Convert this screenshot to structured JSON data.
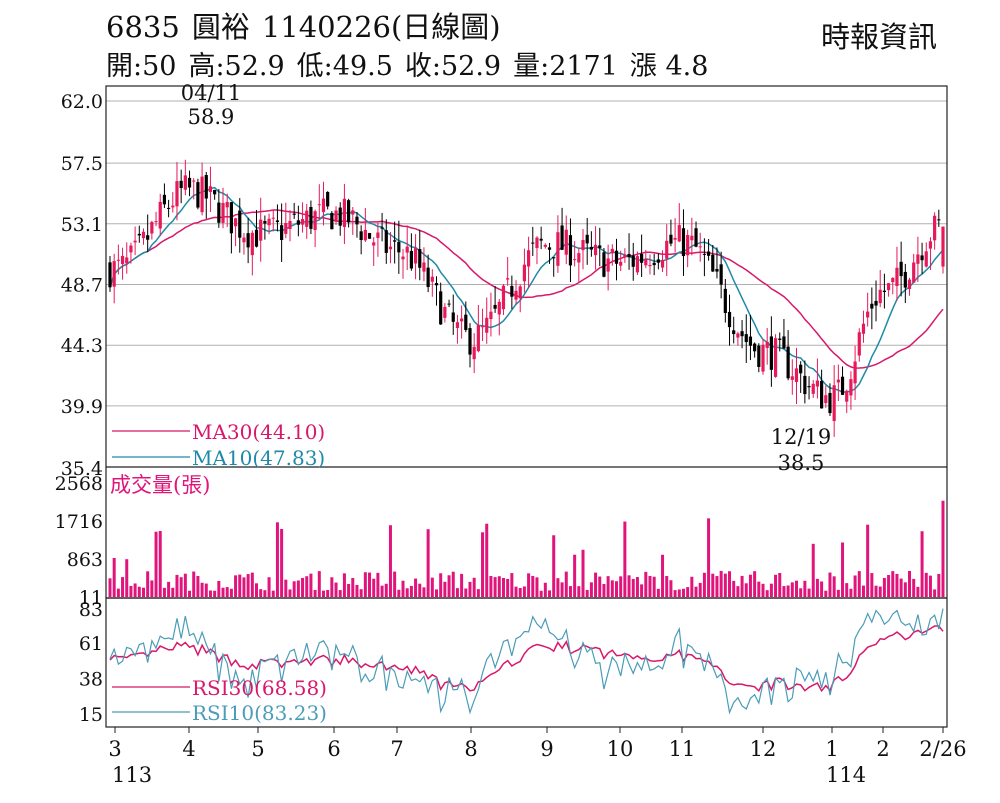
{
  "header": {
    "code": "6835",
    "name": "圓裕",
    "date_label": "1140226(日線圖)",
    "source": "時報資訊",
    "open": "開:50",
    "high": "高:52.9",
    "low": "低:49.5",
    "close": "收:52.9",
    "volume": "量:2171",
    "change": "漲 4.8"
  },
  "colors": {
    "up": "#e8195a",
    "down": "#000000",
    "ma30": "#d8186a",
    "ma10": "#1e8aa8",
    "volume": "#e0147a",
    "rsi30": "#d8186a",
    "rsi10": "#4a9cb8",
    "grid": "#b0b0b0"
  },
  "chart_data": [
    {
      "type": "candlestick",
      "panel": "price",
      "yticks": [
        "62.0",
        "57.5",
        "53.1",
        "48.7",
        "44.3",
        "39.9",
        "35.4"
      ],
      "ylim": [
        35.4,
        62.0
      ],
      "annotations": [
        {
          "date": "04/11",
          "value": "58.9",
          "kind": "high"
        },
        {
          "date": "12/19",
          "value": "38.5",
          "kind": "low"
        }
      ],
      "legend": [
        {
          "label": "MA30(44.10)",
          "color": "#d8186a"
        },
        {
          "label": "MA10(47.83)",
          "color": "#1e8aa8"
        }
      ],
      "monthly_close": [
        {
          "month": "3",
          "close": 49.8
        },
        {
          "month": "4",
          "close": 55.5
        },
        {
          "month": "5",
          "close": 52.4
        },
        {
          "month": "6",
          "close": 53.8
        },
        {
          "month": "7",
          "close": 51.2
        },
        {
          "month": "8",
          "close": 44.8
        },
        {
          "month": "9",
          "close": 51.6
        },
        {
          "month": "10",
          "close": 50.3
        },
        {
          "month": "11",
          "close": 51.8
        },
        {
          "month": "12",
          "close": 43.9
        },
        {
          "month": "1",
          "close": 40.5
        },
        {
          "month": "2",
          "close": 48.2
        },
        {
          "month": "2/26",
          "close": 52.9
        }
      ]
    },
    {
      "type": "bar",
      "panel": "volume",
      "label": "成交量(張)",
      "yticks": [
        "2568",
        "1716",
        "863",
        "11"
      ],
      "ylim": [
        11,
        2568
      ],
      "last_value": 2171
    },
    {
      "type": "line",
      "panel": "rsi",
      "yticks": [
        "83",
        "61",
        "38",
        "15"
      ],
      "ylim": [
        15,
        83
      ],
      "legend": [
        {
          "label": "RSI30(68.58)",
          "color": "#d8186a"
        },
        {
          "label": "RSI10(83.23)",
          "color": "#4a9cb8"
        }
      ]
    }
  ],
  "xaxis": {
    "months": [
      "3",
      "4",
      "5",
      "6",
      "7",
      "8",
      "9",
      "10",
      "11",
      "12",
      "1",
      "2",
      "2/26"
    ],
    "years": [
      "113",
      "114"
    ]
  }
}
